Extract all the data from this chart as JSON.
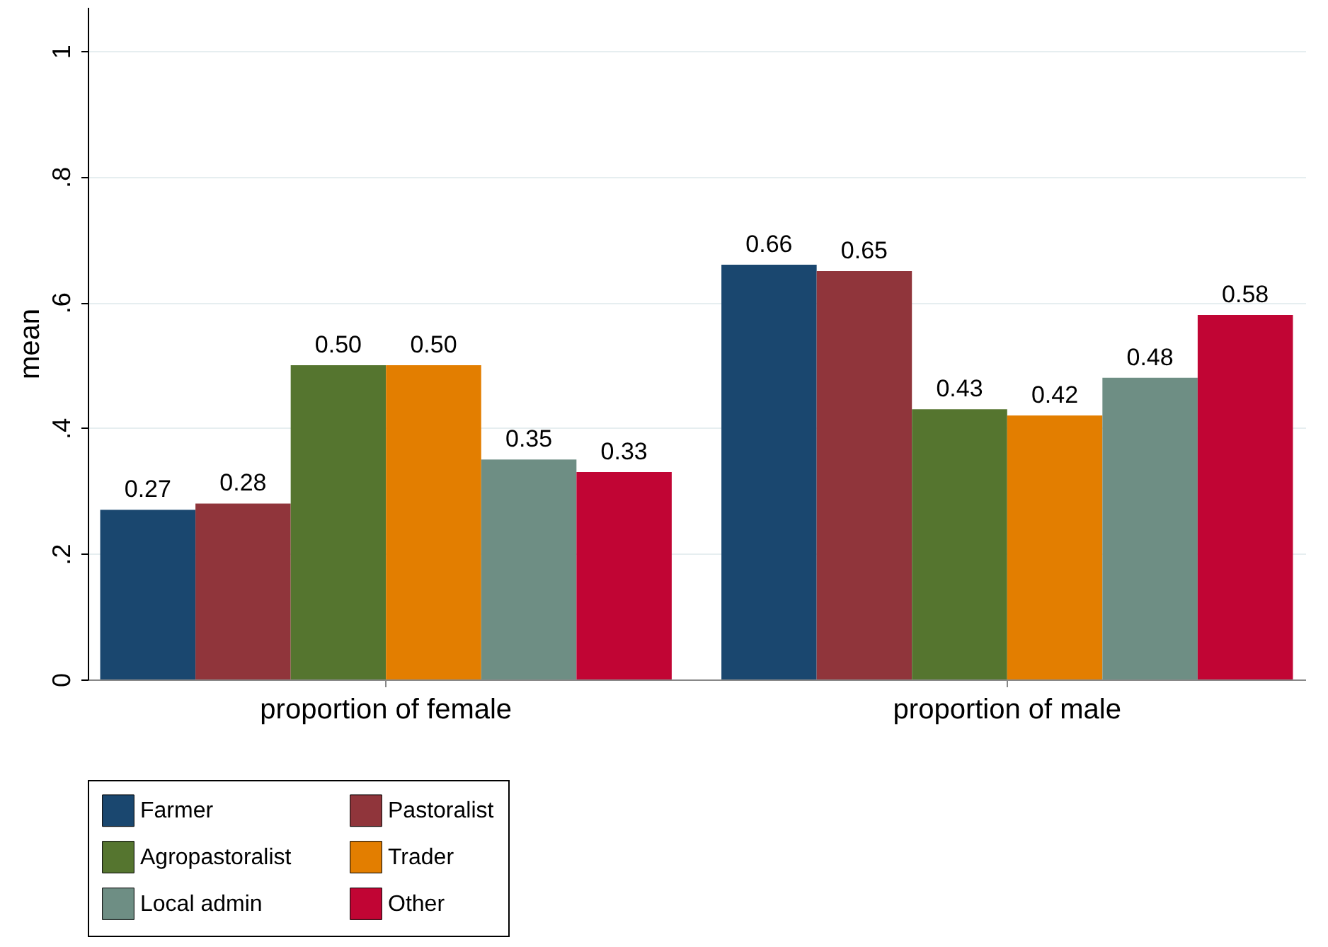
{
  "chart_data": {
    "type": "bar",
    "ylabel": "mean",
    "categories": [
      "proportion of female",
      "proportion of male"
    ],
    "series": [
      {
        "name": "Farmer",
        "color": "#1a476f",
        "values": [
          0.27,
          0.66
        ],
        "value_labels": [
          "0.27",
          "0.66"
        ]
      },
      {
        "name": "Pastoralist",
        "color": "#90353b",
        "values": [
          0.28,
          0.65
        ],
        "value_labels": [
          "0.28",
          "0.65"
        ]
      },
      {
        "name": "Agropastoralist",
        "color": "#55752f",
        "values": [
          0.5,
          0.43
        ],
        "value_labels": [
          "0.50",
          "0.43"
        ]
      },
      {
        "name": "Trader",
        "color": "#e37e00",
        "values": [
          0.5,
          0.42
        ],
        "value_labels": [
          "0.50",
          "0.42"
        ]
      },
      {
        "name": "Local admin",
        "color": "#6e8e84",
        "values": [
          0.35,
          0.48
        ],
        "value_labels": [
          "0.35",
          "0.48"
        ]
      },
      {
        "name": "Other",
        "color": "#c10534",
        "values": [
          0.33,
          0.58
        ],
        "value_labels": [
          "0.33",
          "0.58"
        ]
      }
    ],
    "ylim": [
      0,
      1.07
    ],
    "yticks": [
      {
        "value": 0,
        "label": "0"
      },
      {
        "value": 0.2,
        "label": ".2"
      },
      {
        "value": 0.4,
        "label": ".4"
      },
      {
        "value": 0.6,
        "label": ".6"
      },
      {
        "value": 0.8,
        "label": ".8"
      },
      {
        "value": 1,
        "label": "1"
      }
    ],
    "grid": "y",
    "legend": "bottom"
  }
}
